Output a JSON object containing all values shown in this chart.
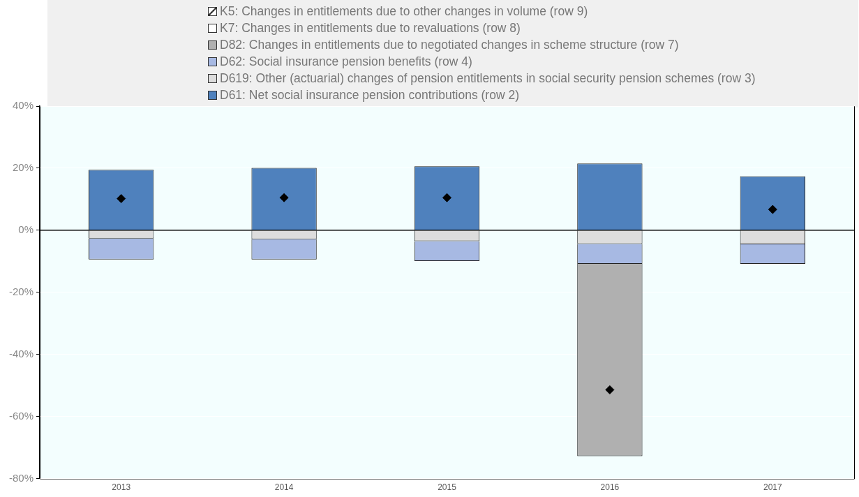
{
  "chart_data": {
    "type": "bar",
    "stacked": true,
    "categories": [
      "2013",
      "2014",
      "2015",
      "2016",
      "2017"
    ],
    "series": [
      {
        "name": "D61: Net social insurance pension contributions (row 2)",
        "color": "#4f81bd",
        "values": [
          19.5,
          20.1,
          20.6,
          21.5,
          17.4
        ]
      },
      {
        "name": "D619: Other (actuarial) changes of pension entitlements in social security pension schemes (row 3)",
        "color": "#dddddd",
        "values": [
          -2.7,
          -2.9,
          -3.5,
          -4.4,
          -4.5
        ]
      },
      {
        "name": "D62: Social insurance pension benefits (row 4)",
        "color": "#a7b9e3",
        "values": [
          -6.7,
          -6.5,
          -6.4,
          -6.4,
          -6.3
        ]
      },
      {
        "name": "D82: Changes in entitlements due to negotiated changes in scheme structure (row 7)",
        "color": "#b0b0b0",
        "values": [
          null,
          null,
          null,
          -62.0,
          null
        ]
      },
      {
        "name": "K7: Changes in entitlements due to revaluations (row 8)",
        "color": "#ffffff",
        "values": [
          null,
          null,
          null,
          null,
          null
        ]
      },
      {
        "name": "K5: Changes in entitlements due to other changes in volume (row 9)",
        "color": "#ffffff",
        "values": [
          null,
          null,
          null,
          null,
          null
        ]
      },
      {
        "type": "scatter",
        "color": "#000000",
        "marker": "diamond",
        "values": [
          10.2,
          10.5,
          10.5,
          -51.4,
          6.7
        ]
      }
    ],
    "ylim": [
      -80,
      40
    ],
    "yticks": [
      {
        "value": -80,
        "label": "-80%"
      },
      {
        "value": -60,
        "label": "-60%"
      },
      {
        "value": -40,
        "label": "-40%"
      },
      {
        "value": -20,
        "label": "-20%"
      },
      {
        "value": 0,
        "label": "0%"
      },
      {
        "value": 20,
        "label": "20%"
      },
      {
        "value": 40,
        "label": "40%"
      }
    ],
    "grid": "y",
    "legend": "top"
  }
}
